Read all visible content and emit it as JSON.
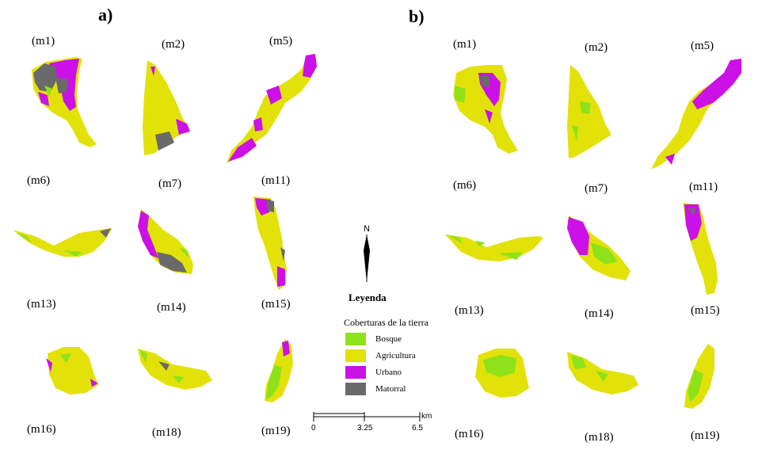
{
  "panels": {
    "a": "a)",
    "b": "b)"
  },
  "labels_a": [
    "(m1)",
    "(m2)",
    "(m5)",
    "(m6)",
    "(m7)",
    "(m11)",
    "(m13)",
    "(m14)",
    "(m15)",
    "(m16)",
    "(m18)",
    "(m19)"
  ],
  "labels_b": [
    "(m1)",
    "(m2)",
    "(m5)",
    "(m6)",
    "(m7)",
    "(m11)",
    "(m13)",
    "(m14)",
    "(m15)",
    "(m16)",
    "(m18)",
    "(m19)"
  ],
  "north": "N",
  "legend": {
    "title": "Leyenda",
    "subtitle": "Coberturas de la tierra",
    "items": [
      {
        "label": "Bosque",
        "color": "#8ee21a"
      },
      {
        "label": "Agricultura",
        "color": "#e2e208"
      },
      {
        "label": "Urbano",
        "color": "#cc10e8"
      },
      {
        "label": "Matorral",
        "color": "#6a6a6a"
      }
    ]
  },
  "scale_bar": {
    "ticks": [
      "0",
      "3.25",
      "6.5"
    ],
    "unit": "km"
  }
}
